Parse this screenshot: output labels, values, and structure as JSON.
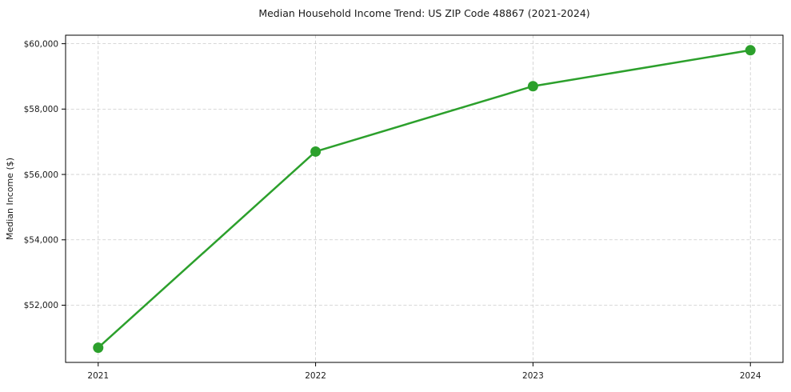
{
  "chart_data": {
    "type": "line",
    "title": "Median Household Income Trend: US ZIP Code 48867 (2021-2024)",
    "xlabel": "",
    "ylabel": "Median Income ($)",
    "x": [
      2021,
      2022,
      2023,
      2024
    ],
    "categories": [
      "2021",
      "2022",
      "2023",
      "2024"
    ],
    "series": [
      {
        "name": "Median Household Income",
        "values": [
          50700,
          56700,
          58700,
          59800
        ],
        "color": "#2ca02c",
        "marker": "circle"
      }
    ],
    "xlim": [
      2020.85,
      2024.15
    ],
    "ylim": [
      50250,
      60260
    ],
    "xticks": [
      2021,
      2022,
      2023,
      2024
    ],
    "xtick_labels": [
      "2021",
      "2022",
      "2023",
      "2024"
    ],
    "yticks": [
      52000,
      54000,
      56000,
      58000,
      60000
    ],
    "ytick_labels": [
      "$52,000",
      "$54,000",
      "$56,000",
      "$58,000",
      "$60,000"
    ],
    "grid": true,
    "grid_style": "dashed",
    "grid_color": "#cccccc",
    "frame_color": "#000000",
    "text_color": "#1a1a1a",
    "legend": "none"
  }
}
